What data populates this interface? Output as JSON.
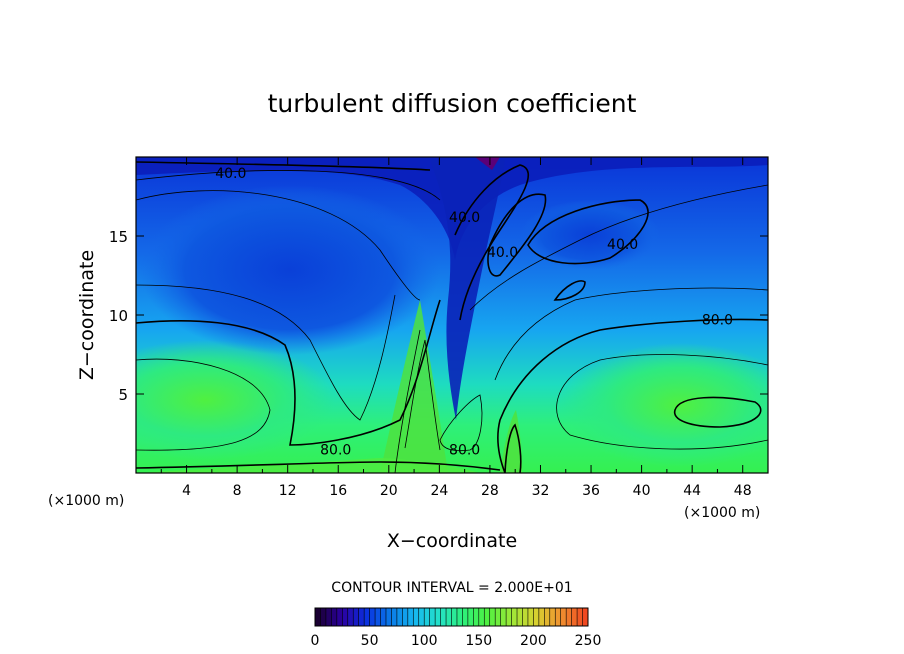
{
  "chart_data": {
    "type": "heatmap",
    "title": "turbulent diffusion coefficient",
    "xlabel": "X−coordinate",
    "ylabel": "Z−coordinate",
    "x_unit_left": "(×1000 m)",
    "x_unit_right": "(×1000 m)",
    "xlim": [
      0,
      50
    ],
    "ylim": [
      0,
      20
    ],
    "x_ticks": [
      4,
      8,
      12,
      16,
      20,
      24,
      28,
      32,
      36,
      40,
      44,
      48
    ],
    "y_ticks": [
      5,
      10,
      15
    ],
    "contour_interval_text": "CONTOUR INTERVAL = 2.000E+01",
    "contour_labels": [
      {
        "text": "40.0",
        "x": 7.5,
        "z": 19.0
      },
      {
        "text": "40.0",
        "x": 26.0,
        "z": 16.2
      },
      {
        "text": "40.0",
        "x": 29.0,
        "z": 14.0
      },
      {
        "text": "40.0",
        "x": 38.5,
        "z": 14.5
      },
      {
        "text": "80.0",
        "x": 46.0,
        "z": 9.7
      },
      {
        "text": "80.0",
        "x": 15.8,
        "z": 1.5
      },
      {
        "text": "80.0",
        "x": 26.0,
        "z": 1.5
      }
    ],
    "colorbar": {
      "range": [
        0,
        250
      ],
      "ticks": [
        0,
        50,
        100,
        150,
        200,
        250
      ],
      "colors": [
        "#1a0033",
        "#2b00a0",
        "#0a30e0",
        "#0a7ae8",
        "#16b8f0",
        "#24e2c8",
        "#2ef07a",
        "#50f040",
        "#9fe838",
        "#d8d030",
        "#f09030",
        "#f04820"
      ]
    }
  }
}
